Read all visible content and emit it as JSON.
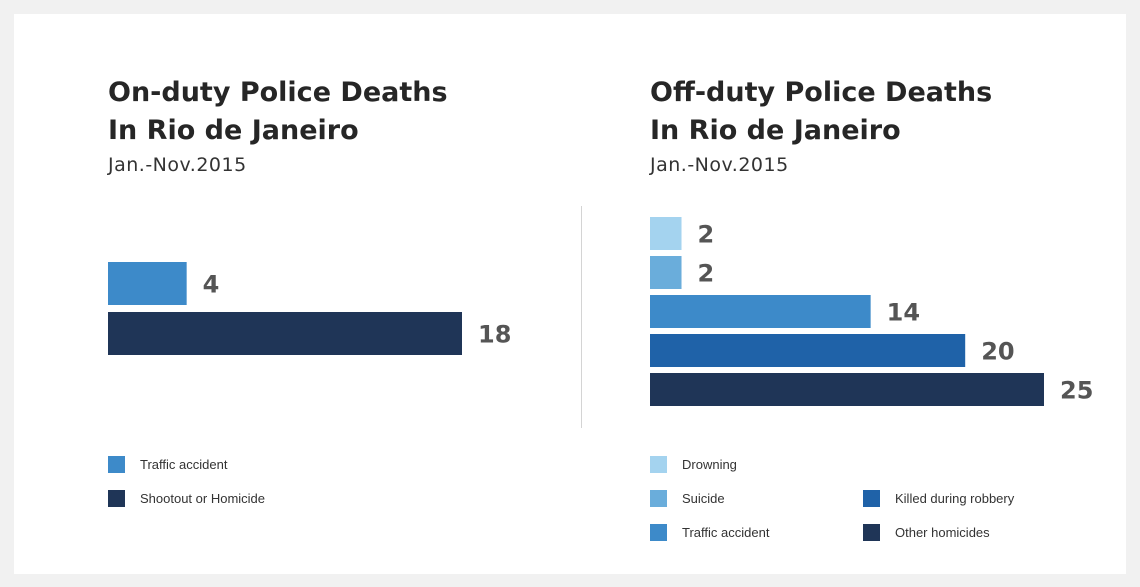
{
  "chart_data": [
    {
      "type": "bar",
      "orientation": "horizontal",
      "title": [
        "On-duty Police Deaths",
        "In Rio de Janeiro"
      ],
      "subtitle": "Jan.-Nov.2015",
      "categories": [
        "Traffic accident",
        "Shootout or Homicide"
      ],
      "values": [
        4,
        18
      ],
      "colors": [
        "#3d8ac9",
        "#1f3557"
      ],
      "xlim": [
        0,
        18
      ],
      "grid": false,
      "legend": {
        "placement": "bottom",
        "items": [
          {
            "label": "Traffic accident",
            "color": "#3d8ac9"
          },
          {
            "label": "Shootout or Homicide",
            "color": "#1f3557"
          }
        ]
      }
    },
    {
      "type": "bar",
      "orientation": "horizontal",
      "title": [
        "Off-duty Police Deaths",
        "In Rio de Janeiro"
      ],
      "subtitle": "Jan.-Nov.2015",
      "categories": [
        "Drowning",
        "Suicide",
        "Traffic accident",
        "Killed during robbery",
        "Other homicides"
      ],
      "values": [
        2,
        2,
        14,
        20,
        25
      ],
      "colors": [
        "#a4d3ef",
        "#6aaddb",
        "#3d8ac9",
        "#1f62a8",
        "#1f3557"
      ],
      "xlim": [
        0,
        25
      ],
      "grid": false,
      "legend": {
        "placement": "bottom",
        "items": [
          {
            "label": "Drowning",
            "color": "#a4d3ef"
          },
          {
            "label": "Suicide",
            "color": "#6aaddb"
          },
          {
            "label": "Traffic accident",
            "color": "#3d8ac9"
          },
          {
            "label": "Killed during robbery",
            "color": "#1f62a8"
          },
          {
            "label": "Other homicides",
            "color": "#1f3557"
          }
        ]
      }
    }
  ]
}
